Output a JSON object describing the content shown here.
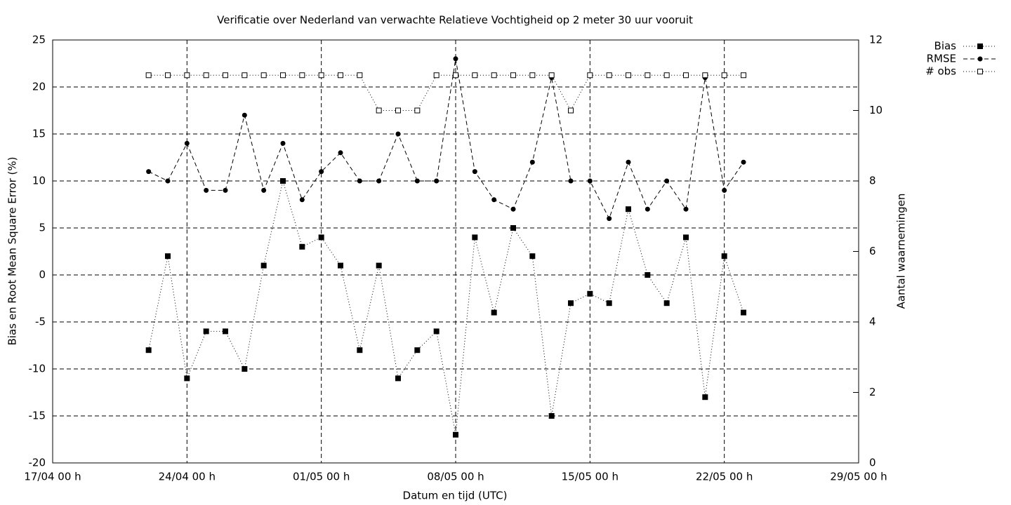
{
  "chart_data": {
    "type": "line",
    "title": "Verificatie over Nederland van verwachte Relatieve Vochtigheid op 2 meter 30 uur vooruit",
    "xlabel": "Datum en tijd (UTC)",
    "ylabel": "Bias en Root Mean Square Error (%)",
    "y2label": "Aantal waarnemingen",
    "x": [
      "22/04 00 h",
      "23/04 00 h",
      "24/04 00 h",
      "25/04 00 h",
      "26/04 00 h",
      "27/04 00 h",
      "28/04 00 h",
      "29/04 00 h",
      "30/04 00 h",
      "01/05 00 h",
      "02/05 00 h",
      "03/05 00 h",
      "04/05 00 h",
      "05/05 00 h",
      "06/05 00 h",
      "07/05 00 h",
      "08/05 00 h",
      "09/05 00 h",
      "10/05 00 h",
      "11/05 00 h",
      "12/05 00 h",
      "13/05 00 h",
      "14/05 00 h",
      "15/05 00 h",
      "16/05 00 h",
      "17/05 00 h",
      "18/05 00 h",
      "19/05 00 h",
      "20/05 00 h",
      "21/05 00 h",
      "22/05 00 h",
      "23/05 00 h"
    ],
    "series": [
      {
        "name": "Bias",
        "color": "#000000",
        "line_style": "dotted",
        "marker": "filled-square",
        "values": [
          -8,
          2,
          -11,
          -6,
          -6,
          -10,
          1,
          10,
          3,
          4,
          1,
          -8,
          1,
          -11,
          -8,
          -6,
          -17,
          4,
          -4,
          5,
          2,
          -15,
          -3,
          -2,
          -3,
          7,
          0,
          -3,
          4,
          -13,
          2,
          -4
        ]
      },
      {
        "name": "RMSE",
        "color": "#000000",
        "line_style": "dashed",
        "marker": "filled-circle",
        "values": [
          11,
          10,
          14,
          9,
          9,
          17,
          9,
          14,
          8,
          11,
          13,
          10,
          10,
          15,
          10,
          10,
          23,
          11,
          8,
          7,
          12,
          21,
          10,
          10,
          6,
          12,
          7,
          10,
          7,
          21,
          9,
          12
        ]
      },
      {
        "name": "# obs",
        "color": "#000000",
        "line_style": "dotted",
        "marker": "open-square",
        "axis": "y2",
        "values": [
          11,
          11,
          11,
          11,
          11,
          11,
          11,
          11,
          11,
          11,
          11,
          11,
          10,
          10,
          10,
          11,
          11,
          11,
          11,
          11,
          11,
          11,
          10,
          11,
          11,
          11,
          11,
          11,
          11,
          11,
          11,
          11
        ]
      }
    ],
    "xlim": [
      "17/04 00 h",
      "29/05 00 h"
    ],
    "xticks": [
      "17/04 00 h",
      "24/04 00 h",
      "01/05 00 h",
      "08/05 00 h",
      "15/05 00 h",
      "22/05 00 h",
      "29/05 00 h"
    ],
    "ylim": [
      -20,
      25
    ],
    "yticks": [
      -20,
      -15,
      -10,
      -5,
      0,
      5,
      10,
      15,
      20,
      25
    ],
    "y2lim": [
      0,
      12
    ],
    "y2ticks": [
      0,
      2,
      4,
      6,
      8,
      10,
      12
    ],
    "grid": true,
    "legend": "top-right"
  }
}
